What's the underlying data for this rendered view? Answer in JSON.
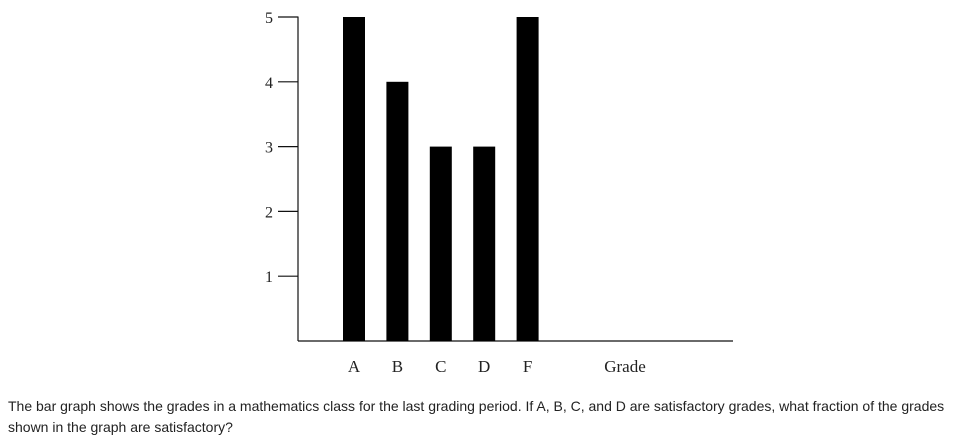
{
  "chart_data": {
    "type": "bar",
    "categories": [
      "A",
      "B",
      "C",
      "D",
      "F"
    ],
    "values": [
      5,
      4,
      3,
      3,
      5
    ],
    "xlabel": "Grade",
    "ylabel": "",
    "ylim": [
      0,
      5
    ],
    "yticks": [
      1,
      2,
      3,
      4,
      5
    ],
    "bar_color": "#000000",
    "grid": false
  },
  "question": {
    "text": "The bar graph shows the grades in a mathematics class for the last grading period. If A, B, C, and D are satisfactory grades, what fraction of the grades shown in the graph are satisfactory?"
  }
}
